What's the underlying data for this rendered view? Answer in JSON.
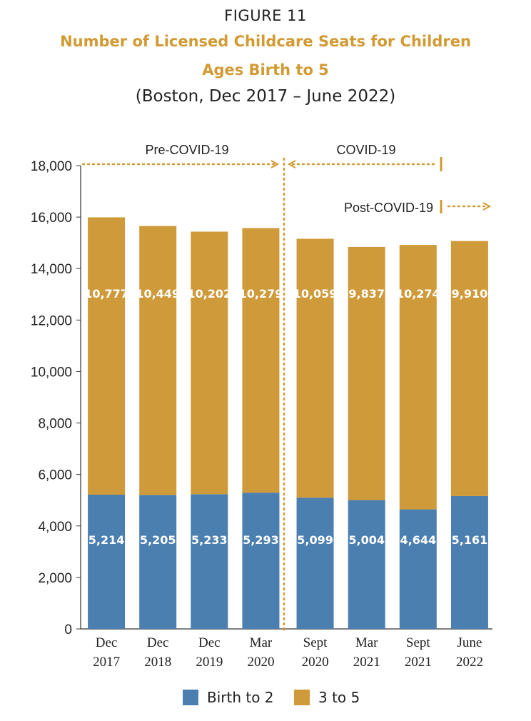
{
  "figure_label": "FIGURE 11",
  "title_line1": "Number of Licensed Childcare Seats for Children",
  "title_line2": "Ages Birth to 5",
  "subtitle": "(Boston, Dec 2017 – June 2022)",
  "colors": {
    "birth_to_2": "#4a7fb0",
    "three_to_5": "#cf9a3a",
    "title": "#d29a33",
    "annotation": "#d29a33"
  },
  "annotations": {
    "pre_covid": "Pre-COVID-19",
    "covid": "COVID-19",
    "post_covid": "Post-COVID-19"
  },
  "legend": [
    {
      "label": "Birth to 2",
      "color": "#4a7fb0"
    },
    {
      "label": "3 to 5",
      "color": "#cf9a3a"
    }
  ],
  "chart_data": {
    "type": "bar",
    "stacked": true,
    "title": "Number of Licensed Childcare Seats for Children Ages Birth to 5",
    "subtitle": "(Boston, Dec 2017 – June 2022)",
    "categories": [
      [
        "Dec",
        "2017"
      ],
      [
        "Dec",
        "2018"
      ],
      [
        "Dec",
        "2019"
      ],
      [
        "Mar",
        "2020"
      ],
      [
        "Sept",
        "2020"
      ],
      [
        "Mar",
        "2021"
      ],
      [
        "Sept",
        "2021"
      ],
      [
        "June",
        "2022"
      ]
    ],
    "series": [
      {
        "name": "Birth to 2",
        "color": "#4a7fb0",
        "values": [
          5214,
          5205,
          5233,
          5293,
          5099,
          5004,
          4644,
          5161
        ],
        "labels": [
          "5,214",
          "5,205",
          "5,233",
          "5,293",
          "5,099",
          "5,004",
          "4,644",
          "5,161"
        ]
      },
      {
        "name": "3 to 5",
        "color": "#cf9a3a",
        "values": [
          10777,
          10449,
          10202,
          10279,
          10059,
          9837,
          10274,
          9910
        ],
        "labels": [
          "10,777",
          "10,449",
          "10,202",
          "10,279",
          "10,059",
          "9,837",
          "10,274",
          "9,910"
        ]
      }
    ],
    "ylim": [
      0,
      18000
    ],
    "yticks": [
      0,
      2000,
      4000,
      6000,
      8000,
      10000,
      12000,
      14000,
      16000,
      18000
    ],
    "ytick_labels": [
      "0",
      "2,000",
      "4,000",
      "6,000",
      "8,000",
      "10,000",
      "12,000",
      "14,000",
      "16,000",
      "18,000"
    ],
    "grid": false,
    "legend_position": "bottom"
  }
}
